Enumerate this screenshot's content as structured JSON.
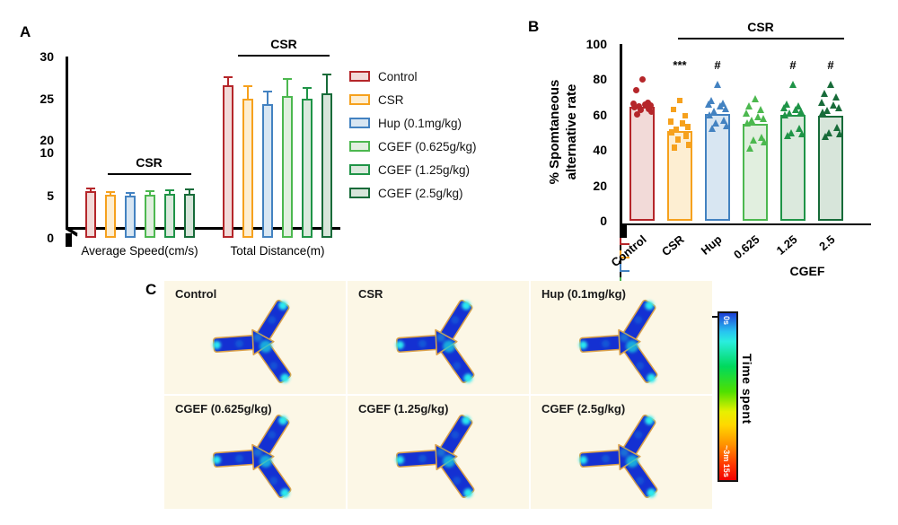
{
  "panels": {
    "a": {
      "label": "A",
      "x_group_labels": [
        "Average Speed(cm/s)",
        "Total Distance(m)"
      ],
      "sig_bracket_label": "CSR",
      "y_ticks_upper": [
        30,
        25,
        20
      ],
      "y_ticks_lower": [
        10,
        5,
        0
      ]
    },
    "b": {
      "label": "B",
      "ylabel_line1": "% Spomtaneous",
      "ylabel_line2": "alternative rate",
      "sig_bracket_label": "CSR",
      "y_ticks": [
        100,
        80,
        60,
        40,
        20,
        0
      ]
    },
    "c": {
      "label": "C",
      "cells": [
        "Control",
        "CSR",
        "Hup (0.1mg/kg)",
        "CGEF (0.625g/kg)",
        "CGEF (1.25g/kg)",
        "CGEF (2.5g/kg)"
      ],
      "colorbar": {
        "title": "Time spent",
        "top_label": "0s",
        "bottom_label": "~3m 15s"
      }
    }
  },
  "legend": {
    "items": [
      {
        "label": "Control",
        "border": "#b5262a",
        "fill": "#f2dad8"
      },
      {
        "label": "CSR",
        "border": "#f6a11d",
        "fill": "#fdeed2"
      },
      {
        "label": "Hup (0.1mg/kg)",
        "border": "#4382c1",
        "fill": "#d8e6f2"
      },
      {
        "label": "CGEF (0.625g/kg)",
        "border": "#4cb84f",
        "fill": "#e1efdf"
      },
      {
        "label": "CGEF (1.25g/kg)",
        "border": "#1f9447",
        "fill": "#dbe9dd"
      },
      {
        "label": "CGEF (2.5g/kg)",
        "border": "#176b39",
        "fill": "#d7e5da"
      }
    ]
  },
  "chart_data": [
    {
      "panel": "A",
      "type": "bar",
      "categories": [
        "Average Speed(cm/s)",
        "Total Distance(m)"
      ],
      "series": [
        {
          "name": "Control",
          "values": [
            5.5,
            26.6
          ],
          "errors": [
            0.25,
            0.9
          ]
        },
        {
          "name": "CSR",
          "values": [
            5.1,
            25.0
          ],
          "errors": [
            0.3,
            1.4
          ]
        },
        {
          "name": "Hup (0.1mg/kg)",
          "values": [
            5.0,
            24.3
          ],
          "errors": [
            0.3,
            1.5
          ]
        },
        {
          "name": "CGEF (0.625g/kg)",
          "values": [
            5.1,
            25.3
          ],
          "errors": [
            0.4,
            2.0
          ]
        },
        {
          "name": "CGEF (1.25g/kg)",
          "values": [
            5.2,
            24.9
          ],
          "errors": [
            0.35,
            1.3
          ]
        },
        {
          "name": "CGEF (2.5g/kg)",
          "values": [
            5.2,
            25.6
          ],
          "errors": [
            0.5,
            2.2
          ]
        }
      ],
      "y_axis_break": {
        "lower": [
          0,
          10
        ],
        "upper": [
          20,
          30
        ]
      },
      "sig_brackets": [
        {
          "label": "CSR",
          "group": 0,
          "series_span": [
            1,
            5
          ]
        },
        {
          "label": "CSR",
          "group": 1,
          "series_span": [
            1,
            5
          ]
        }
      ],
      "legend_position": "right"
    },
    {
      "panel": "B",
      "type": "bar_scatter",
      "ylabel": "% Spomtaneous alternative rate",
      "categories": [
        "Control",
        "CSR",
        "Hup",
        "0.625",
        "1.25",
        "2.5"
      ],
      "values": [
        64.5,
        51,
        60.5,
        55,
        60,
        59.5
      ],
      "sem": [
        1.5,
        2.0,
        1.8,
        1.5,
        1.7,
        1.8
      ],
      "sig_labels": [
        "",
        "***",
        "#",
        "",
        "#",
        "#"
      ],
      "markers": [
        "circle",
        "square",
        "triangle",
        "triangle",
        "triangle",
        "triangle"
      ],
      "points": [
        [
          80,
          74,
          67,
          66,
          65.5,
          65,
          64.5,
          64,
          63,
          62.5,
          61.5,
          60
        ],
        [
          68,
          63,
          59.5,
          56,
          55,
          53,
          51.5,
          50,
          48,
          46,
          43,
          41.5
        ],
        [
          77,
          68,
          66.5,
          66,
          65,
          63.5,
          62,
          60,
          57,
          55.5,
          54,
          52.5
        ],
        [
          69,
          65,
          63,
          61,
          59,
          58,
          57,
          55.5,
          47,
          45.5,
          44.5,
          41
        ],
        [
          77,
          66,
          65,
          64,
          63,
          62,
          61,
          60,
          52.5,
          50,
          49,
          48
        ],
        [
          77,
          72,
          70,
          67,
          65.5,
          64,
          62.5,
          61.5,
          53,
          50,
          49,
          47.5
        ]
      ],
      "ylim": [
        0,
        100
      ],
      "yticks": [
        0,
        20,
        40,
        60,
        80,
        100
      ],
      "top_bracket": {
        "label": "CSR",
        "span": [
          1,
          5
        ]
      },
      "x_group_bracket": {
        "label": "CGEF",
        "span": [
          3,
          5
        ]
      }
    }
  ]
}
